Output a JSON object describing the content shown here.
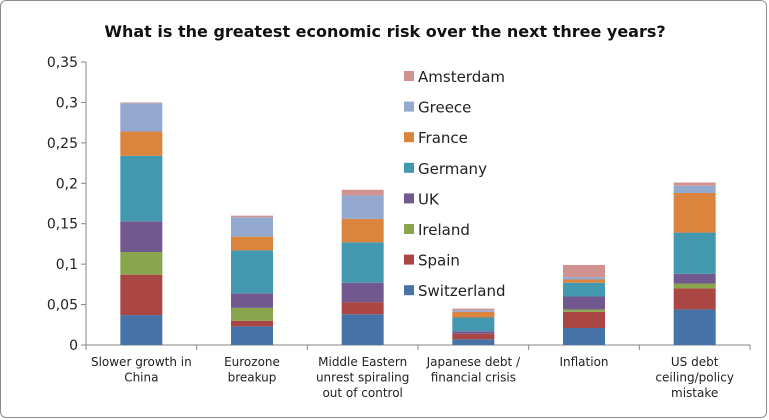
{
  "chart_data": {
    "type": "bar",
    "stacked": true,
    "title": "What is the greatest economic risk over the next three years?",
    "xlabel": "",
    "ylabel": "",
    "ylim": [
      0,
      0.35
    ],
    "y_ticks": [
      0,
      0.05,
      0.1,
      0.15,
      0.2,
      0.25,
      0.3,
      0.35
    ],
    "y_tick_labels": [
      "0",
      "0,05",
      "0,1",
      "0,15",
      "0,2",
      "0,25",
      "0,3",
      "0,35"
    ],
    "grid": false,
    "legend_position": "inside-upper-center",
    "categories": [
      [
        "Slower growth in",
        "China"
      ],
      [
        "Eurozone",
        "breakup"
      ],
      [
        "Middle Eastern",
        "unrest spiraling",
        "out of control"
      ],
      [
        "Japanese debt /",
        "financial crisis"
      ],
      [
        "Inflation"
      ],
      [
        "US debt",
        "ceiling/policy",
        "mistake"
      ]
    ],
    "series": [
      {
        "name": "Switzerland",
        "color": "#4573a7",
        "values": [
          0.037,
          0.023,
          0.038,
          0.007,
          0.021,
          0.044
        ]
      },
      {
        "name": "Spain",
        "color": "#aa4643",
        "values": [
          0.05,
          0.007,
          0.015,
          0.007,
          0.02,
          0.026
        ]
      },
      {
        "name": "Ireland",
        "color": "#89a54e",
        "values": [
          0.028,
          0.016,
          0.0,
          0.0,
          0.003,
          0.006
        ]
      },
      {
        "name": "UK",
        "color": "#71588f",
        "values": [
          0.038,
          0.018,
          0.024,
          0.003,
          0.016,
          0.012
        ]
      },
      {
        "name": "Germany",
        "color": "#4298af",
        "values": [
          0.081,
          0.053,
          0.05,
          0.017,
          0.017,
          0.051
        ]
      },
      {
        "name": "France",
        "color": "#db843d",
        "values": [
          0.03,
          0.017,
          0.029,
          0.007,
          0.004,
          0.049
        ]
      },
      {
        "name": "Greece",
        "color": "#93a9cf",
        "values": [
          0.035,
          0.024,
          0.029,
          0.002,
          0.003,
          0.009
        ]
      },
      {
        "name": "Amsterdam",
        "color": "#d19392",
        "values": [
          0.001,
          0.002,
          0.007,
          0.002,
          0.015,
          0.004
        ]
      }
    ]
  }
}
